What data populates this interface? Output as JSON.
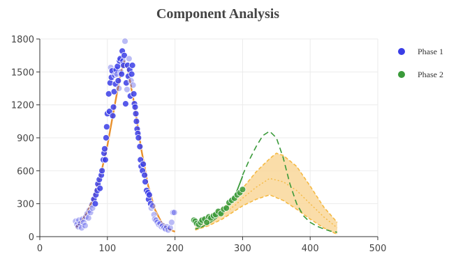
{
  "chart_data": {
    "type": "scatter",
    "title": "Component Analysis",
    "xlabel": "",
    "ylabel": "",
    "xlim": [
      0,
      500
    ],
    "ylim": [
      0,
      1800
    ],
    "x_ticks": [
      0,
      100,
      200,
      300,
      400,
      500
    ],
    "y_ticks": [
      0,
      300,
      600,
      900,
      1200,
      1500,
      1800
    ],
    "grid": true,
    "legend_position": "top-right",
    "colors": {
      "phase1": "#3a3de6",
      "phase2": "#3a9a3a",
      "fit": "#e8902c",
      "band": "#f5b942",
      "band_fill": "#f9d79a"
    },
    "series": [
      {
        "name": "Phase 1",
        "color": "#3a3de6",
        "points": [
          [
            53,
            140
          ],
          [
            55,
            110
          ],
          [
            57,
            90
          ],
          [
            58,
            150
          ],
          [
            60,
            120
          ],
          [
            62,
            80
          ],
          [
            63,
            160
          ],
          [
            65,
            130
          ],
          [
            67,
            100
          ],
          [
            68,
            180
          ],
          [
            70,
            210
          ],
          [
            72,
            170
          ],
          [
            73,
            240
          ],
          [
            75,
            220
          ],
          [
            77,
            290
          ],
          [
            78,
            260
          ],
          [
            80,
            340
          ],
          [
            82,
            300
          ],
          [
            83,
            380
          ],
          [
            85,
            420
          ],
          [
            86,
            480
          ],
          [
            88,
            520
          ],
          [
            89,
            440
          ],
          [
            91,
            560
          ],
          [
            92,
            600
          ],
          [
            94,
            700
          ],
          [
            95,
            760
          ],
          [
            96,
            800
          ],
          [
            97,
            700
          ],
          [
            98,
            900
          ],
          [
            99,
            1000
          ],
          [
            100,
            1120
          ],
          [
            102,
            1300
          ],
          [
            103,
            1140
          ],
          [
            104,
            1400
          ],
          [
            105,
            1540
          ],
          [
            106,
            1450
          ],
          [
            107,
            1510
          ],
          [
            108,
            1100
          ],
          [
            109,
            1180
          ],
          [
            110,
            1320
          ],
          [
            111,
            1470
          ],
          [
            112,
            1390
          ],
          [
            113,
            1520
          ],
          [
            114,
            1480
          ],
          [
            115,
            1550
          ],
          [
            116,
            1420
          ],
          [
            117,
            1350
          ],
          [
            118,
            1600
          ],
          [
            119,
            1620
          ],
          [
            120,
            1500
          ],
          [
            121,
            1480
          ],
          [
            122,
            1690
          ],
          [
            123,
            1600
          ],
          [
            124,
            1560
          ],
          [
            125,
            1650
          ],
          [
            126,
            1780
          ],
          [
            127,
            1210
          ],
          [
            128,
            1400
          ],
          [
            129,
            1340
          ],
          [
            130,
            1560
          ],
          [
            131,
            1460
          ],
          [
            132,
            1620
          ],
          [
            133,
            1520
          ],
          [
            134,
            1280
          ],
          [
            135,
            1420
          ],
          [
            136,
            1480
          ],
          [
            137,
            1560
          ],
          [
            138,
            1380
          ],
          [
            139,
            1300
          ],
          [
            140,
            1210
          ],
          [
            141,
            1180
          ],
          [
            142,
            1120
          ],
          [
            143,
            1050
          ],
          [
            144,
            980
          ],
          [
            145,
            940
          ],
          [
            146,
            900
          ],
          [
            148,
            820
          ],
          [
            149,
            700
          ],
          [
            150,
            640
          ],
          [
            152,
            600
          ],
          [
            153,
            660
          ],
          [
            155,
            560
          ],
          [
            156,
            500
          ],
          [
            158,
            420
          ],
          [
            160,
            400
          ],
          [
            161,
            340
          ],
          [
            162,
            380
          ],
          [
            164,
            300
          ],
          [
            165,
            260
          ],
          [
            167,
            280
          ],
          [
            169,
            200
          ],
          [
            170,
            160
          ],
          [
            172,
            150
          ],
          [
            174,
            130
          ],
          [
            176,
            110
          ],
          [
            178,
            120
          ],
          [
            180,
            90
          ],
          [
            182,
            100
          ],
          [
            184,
            80
          ],
          [
            186,
            70
          ],
          [
            188,
            90
          ],
          [
            190,
            60
          ],
          [
            193,
            80
          ],
          [
            195,
            130
          ],
          [
            197,
            220
          ],
          [
            199,
            220
          ]
        ]
      },
      {
        "name": "Phase 2",
        "color": "#3a9a3a",
        "points": [
          [
            228,
            150
          ],
          [
            230,
            140
          ],
          [
            232,
            120
          ],
          [
            235,
            110
          ],
          [
            238,
            130
          ],
          [
            240,
            150
          ],
          [
            244,
            160
          ],
          [
            247,
            130
          ],
          [
            250,
            180
          ],
          [
            253,
            170
          ],
          [
            257,
            190
          ],
          [
            260,
            200
          ],
          [
            264,
            230
          ],
          [
            268,
            210
          ],
          [
            272,
            250
          ],
          [
            276,
            260
          ],
          [
            280,
            310
          ],
          [
            284,
            330
          ],
          [
            288,
            350
          ],
          [
            292,
            380
          ],
          [
            296,
            400
          ],
          [
            300,
            430
          ]
        ]
      }
    ],
    "fit_curve": {
      "x": [
        53,
        60,
        70,
        80,
        90,
        100,
        110,
        120,
        125,
        130,
        140,
        150,
        160,
        170,
        180,
        190,
        200
      ],
      "y": [
        80,
        130,
        220,
        360,
        560,
        830,
        1170,
        1500,
        1590,
        1530,
        1200,
        800,
        470,
        250,
        130,
        70,
        45
      ]
    },
    "phase2_fit_solid": {
      "x": [
        230,
        240,
        250,
        260,
        270,
        280,
        290,
        300
      ],
      "y": [
        70,
        90,
        120,
        165,
        220,
        290,
        390,
        550
      ]
    },
    "projection_dashed": {
      "x": [
        300,
        310,
        320,
        330,
        340,
        350,
        360,
        370,
        380,
        390,
        400,
        410,
        420,
        430,
        440
      ],
      "y": [
        560,
        700,
        820,
        920,
        960,
        900,
        720,
        480,
        300,
        190,
        130,
        95,
        70,
        50,
        40
      ]
    },
    "band_median": {
      "x": [
        230,
        250,
        270,
        290,
        300,
        320,
        340,
        360,
        380,
        400,
        420,
        440
      ],
      "y": [
        90,
        140,
        200,
        290,
        350,
        450,
        530,
        500,
        420,
        300,
        180,
        80
      ]
    },
    "band_upper": {
      "x": [
        230,
        250,
        270,
        290,
        300,
        320,
        340,
        350,
        360,
        380,
        400,
        420,
        440
      ],
      "y": [
        140,
        190,
        260,
        360,
        440,
        590,
        710,
        760,
        740,
        640,
        460,
        270,
        130
      ]
    },
    "band_lower": {
      "x": [
        230,
        250,
        270,
        290,
        300,
        320,
        340,
        360,
        380,
        400,
        420,
        440
      ],
      "y": [
        60,
        100,
        160,
        240,
        280,
        340,
        380,
        330,
        250,
        160,
        80,
        20
      ]
    }
  }
}
